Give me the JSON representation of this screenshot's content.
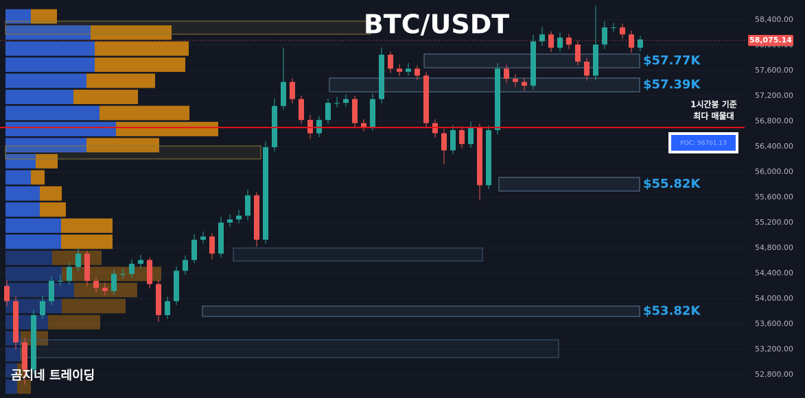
{
  "chart_data": {
    "type": "candlestick",
    "title": "BTC/USDT",
    "ylim": [
      52432,
      58713
    ],
    "yticks": [
      {
        "value": 52800,
        "label": "52,800.00"
      },
      {
        "value": 53200,
        "label": "53,200.00"
      },
      {
        "value": 53600,
        "label": "53,600.00"
      },
      {
        "value": 54000,
        "label": "54,000.00"
      },
      {
        "value": 54400,
        "label": "54,400.00"
      },
      {
        "value": 54800,
        "label": "54,800.00"
      },
      {
        "value": 55200,
        "label": "55,200.00"
      },
      {
        "value": 55600,
        "label": "55,600.00"
      },
      {
        "value": 56000,
        "label": "56,000.00"
      },
      {
        "value": 56400,
        "label": "56,400.00"
      },
      {
        "value": 56800,
        "label": "56,800.00"
      },
      {
        "value": 57200,
        "label": "57,200.00"
      },
      {
        "value": 57600,
        "label": "57,600.00"
      },
      {
        "value": 58000,
        "label": "58,000.00"
      },
      {
        "value": 58400,
        "label": "58,400.00"
      }
    ],
    "up_color": "#26a69a",
    "down_color": "#ef5350",
    "open": [
      54200,
      53960,
      53310,
      52880,
      53740,
      53960,
      54280,
      54280,
      54500,
      54710,
      54280,
      54170,
      54120,
      54390,
      54390,
      54550,
      54610,
      54230,
      53740,
      53960,
      54440,
      54610,
      54930,
      54980,
      54710,
      55200,
      55250,
      55310,
      55630,
      54930,
      56390,
      57040,
      57420,
      57150,
      56820,
      56610,
      56820,
      57090,
      57090,
      57150,
      56770,
      56710,
      57150,
      57850,
      57630,
      57580,
      57630,
      57520,
      56770,
      56610,
      56340,
      56660,
      56440,
      56710,
      55790,
      56660,
      57630,
      57470,
      57420,
      57360,
      58060,
      58170,
      57960,
      58120,
      58010,
      57740,
      57520,
      58010,
      58280,
      58280,
      58170,
      57960
    ],
    "high": [
      54290,
      54040,
      53390,
      53820,
      54040,
      54350,
      54380,
      54570,
      54800,
      54760,
      54330,
      54250,
      54460,
      54480,
      54620,
      54690,
      54650,
      54290,
      54030,
      54510,
      54680,
      55020,
      55060,
      55030,
      55290,
      55330,
      55400,
      55720,
      55680,
      56480,
      57160,
      57960,
      57480,
      57200,
      56900,
      56880,
      57160,
      57180,
      57220,
      57200,
      56830,
      57240,
      57960,
      57900,
      57700,
      57720,
      57680,
      57580,
      56830,
      56680,
      56740,
      56720,
      56790,
      56760,
      56730,
      57720,
      57690,
      57540,
      57480,
      58160,
      58290,
      58220,
      58200,
      58180,
      58070,
      57800,
      58620,
      58380,
      58350,
      58340,
      58230,
      58150
    ],
    "low": [
      53880,
      53200,
      52640,
      52820,
      53680,
      53900,
      54200,
      54220,
      54430,
      54200,
      54100,
      54050,
      54060,
      54320,
      54330,
      54480,
      54160,
      53630,
      53680,
      53900,
      54380,
      54560,
      54870,
      54620,
      54650,
      55130,
      55190,
      55240,
      54820,
      54870,
      56320,
      56980,
      57080,
      56760,
      56520,
      56550,
      56760,
      57020,
      57030,
      56700,
      56640,
      56650,
      57080,
      57560,
      57510,
      57520,
      57450,
      56690,
      56540,
      56120,
      56280,
      56370,
      56380,
      55560,
      55730,
      56590,
      57400,
      57340,
      57280,
      57300,
      57990,
      57890,
      57900,
      57940,
      57680,
      57440,
      57450,
      57940,
      58210,
      58100,
      57880,
      57900
    ],
    "close": [
      53960,
      53310,
      52880,
      53740,
      53960,
      54280,
      54280,
      54500,
      54710,
      54280,
      54170,
      54120,
      54390,
      54390,
      54550,
      54610,
      54230,
      53740,
      53960,
      54440,
      54610,
      54930,
      54980,
      54710,
      55200,
      55250,
      55310,
      55630,
      54930,
      56390,
      57040,
      57420,
      57150,
      56820,
      56610,
      56820,
      57090,
      57090,
      57150,
      56770,
      56710,
      57150,
      57850,
      57630,
      57580,
      57630,
      57520,
      56770,
      56610,
      56340,
      56660,
      56440,
      56710,
      55790,
      56660,
      57630,
      57470,
      57420,
      57360,
      58060,
      58170,
      57960,
      58120,
      58010,
      57740,
      57520,
      58010,
      58280,
      58280,
      58170,
      57960,
      58090
    ],
    "last_price": {
      "value": 58075.14,
      "label": "58,075.14"
    },
    "poc": {
      "value": 56701.13,
      "label": "POC: 56701.13",
      "note": [
        "1시간봉 기준",
        "최다 매물대"
      ]
    },
    "zones": [
      {
        "label": "$57.77K",
        "low": 57643,
        "high": 57859,
        "color": "#5d7a99"
      },
      {
        "label": "$57.39K",
        "low": 57264,
        "high": 57481,
        "color": "#5d7a99"
      },
      {
        "label": "$55.82K",
        "low": 55697,
        "high": 55913,
        "color": "#5d7a99"
      },
      {
        "label": "$53.82K",
        "low": 53719,
        "high": 53881,
        "color": "#5d7a99"
      },
      {
        "low": 58173,
        "high": 58378,
        "color": "#8a7a3a"
      },
      {
        "low": 56205,
        "high": 56410,
        "color": "#8a7a3a"
      },
      {
        "low": 54594,
        "high": 54799,
        "color": "#3f5a78"
      },
      {
        "low": 53070,
        "high": 53351,
        "color": "#3f5a78"
      }
    ],
    "zone_label_color": "#2ba3ec",
    "volume_profile": {
      "prices": [
        58454,
        58200,
        57946,
        57692,
        57438,
        57184,
        56930,
        56676,
        56422,
        56168,
        55914,
        55660,
        55406,
        55152,
        54898,
        54644,
        54390,
        54136,
        53882,
        53628,
        53374,
        53120,
        52866,
        52612
      ],
      "buy": [
        37,
        124,
        130,
        130,
        118,
        99,
        137,
        161,
        118,
        44,
        37,
        50,
        50,
        81,
        81,
        68,
        82,
        100,
        82,
        62,
        22,
        22,
        17,
        17
      ],
      "sell": [
        38,
        118,
        137,
        132,
        100,
        94,
        131,
        149,
        106,
        32,
        20,
        32,
        38,
        75,
        75,
        72,
        145,
        92,
        93,
        76,
        40,
        10,
        15,
        20
      ],
      "buy_color": "#2f5fd0",
      "sell_color": "#c57d12"
    },
    "watermark": "곰지네 트레이딩"
  }
}
